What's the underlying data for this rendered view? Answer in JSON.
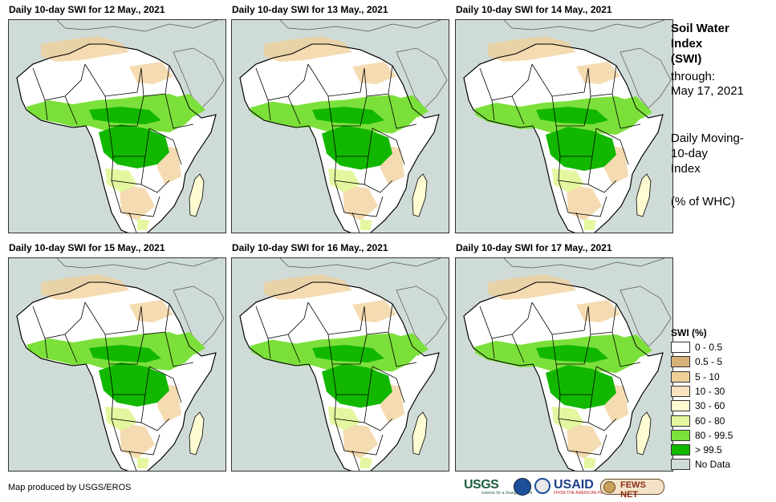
{
  "panels": [
    {
      "title": "Daily 10-day  SWI for 12 May., 2021",
      "variant": 0
    },
    {
      "title": "Daily 10-day  SWI for 13 May., 2021",
      "variant": 1
    },
    {
      "title": "Daily 10-day  SWI for 14 May., 2021",
      "variant": 2
    },
    {
      "title": "Daily 10-day  SWI for 15 May., 2021",
      "variant": 3
    },
    {
      "title": "Daily 10-day  SWI for 16 May., 2021",
      "variant": 4
    },
    {
      "title": "Daily 10-day  SWI for 17 May., 2021",
      "variant": 5
    }
  ],
  "side": {
    "title_lines": [
      "Soil Water",
      "Index",
      "(SWI)"
    ],
    "through_label": "through:",
    "through_date": "May 17, 2021",
    "index_lines": [
      "Daily Moving-",
      "10-day",
      "Index"
    ],
    "units": "(% of WHC)"
  },
  "legend": {
    "title": "SWI (%)",
    "items": [
      {
        "label": "0 - 0.5",
        "color": "#ffffff"
      },
      {
        "label": "0.5 - 5",
        "color": "#d6b27a"
      },
      {
        "label": "5 - 10",
        "color": "#f0cf97"
      },
      {
        "label": "10 - 30",
        "color": "#fbe3c2"
      },
      {
        "label": "30 - 60",
        "color": "#fffcd2"
      },
      {
        "label": "60 - 80",
        "color": "#e4f7a0"
      },
      {
        "label": "80 - 99.5",
        "color": "#7ce03a"
      },
      {
        "label": "> 99.5",
        "color": "#12b800"
      },
      {
        "label": "No Data",
        "color": "#cfdbd7"
      }
    ]
  },
  "credit": "Map produced by USGS/EROS",
  "logos": {
    "usgs": "USGS",
    "usgs_tagline": "science for a changing world",
    "usaid": "USAID",
    "usaid_tagline": "FROM THE AMERICAN PEOPLE",
    "fews": "FEWS NET"
  },
  "colors": {
    "ocean": "#cfdbd7",
    "land": "#ffffff",
    "dry": "#f0cf97",
    "wet": "#7ce03a",
    "saturated": "#12b800",
    "border": "#000000"
  }
}
